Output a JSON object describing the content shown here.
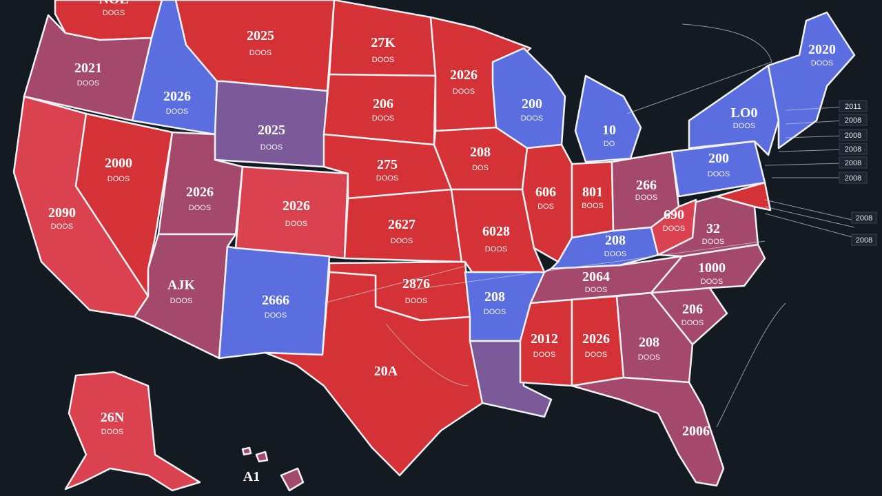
{
  "colors": {
    "background": "#141a22",
    "red": "#d43236",
    "red_light": "#d9424e",
    "purple_red": "#a4486c",
    "purple": "#7c5a9a",
    "blue": "#5a6ee0",
    "border": "#f2f2f5"
  },
  "labels": {
    "wa": {
      "num": "NOE",
      "sub": "DOGS"
    },
    "or": {
      "num": "2021",
      "sub": "DOOS"
    },
    "id": {
      "num": "2026",
      "sub": "DOOS"
    },
    "mt": {
      "num": "2025",
      "sub": "DOOS"
    },
    "nd": {
      "num": "27K",
      "sub": "DOOS"
    },
    "mn": {
      "num": "2026",
      "sub": "DOOS"
    },
    "wy": {
      "num": "2025",
      "sub": "DOOS"
    },
    "sd": {
      "num": "206",
      "sub": "DOOS"
    },
    "ca": {
      "num": "2090",
      "sub": "DOOS"
    },
    "nv": {
      "num": "2000",
      "sub": "DOOS"
    },
    "ut": {
      "num": "2026",
      "sub": "DOOS"
    },
    "co": {
      "num": "2026",
      "sub": "DOOS"
    },
    "ne": {
      "num": "275",
      "sub": "DOOS"
    },
    "ia": {
      "num": "208",
      "sub": "DOS"
    },
    "ks": {
      "num": "2627",
      "sub": "DOOS"
    },
    "mo": {
      "num": "6028",
      "sub": "DOOS"
    },
    "il": {
      "num": "606",
      "sub": "DOS"
    },
    "in": {
      "num": "801",
      "sub": "BOOS"
    },
    "oh": {
      "num": "266",
      "sub": "DOOS"
    },
    "wi": {
      "num": "200",
      "sub": "DOOS"
    },
    "mi": {
      "num": "10",
      "sub": "DO"
    },
    "az": {
      "num": "AJK",
      "sub": "DOOS"
    },
    "nm": {
      "num": "2666",
      "sub": "DOOS"
    },
    "ok": {
      "num": "2876",
      "sub": "DOOS"
    },
    "tx": {
      "num": "20A",
      "sub": ""
    },
    "ar": {
      "num": "208",
      "sub": "DOOS"
    },
    "ms": {
      "num": "2012",
      "sub": "DOOS"
    },
    "al": {
      "num": "2026",
      "sub": "DOOS"
    },
    "ga": {
      "num": "208",
      "sub": "DOOS"
    },
    "sc": {
      "num": "206",
      "sub": "DOOS"
    },
    "nc": {
      "num": "1000",
      "sub": "DOOS"
    },
    "tn": {
      "num": "2064",
      "sub": "DOOS"
    },
    "ky": {
      "num": "208",
      "sub": "DOOS"
    },
    "va": {
      "num": "32",
      "sub": "DOOS"
    },
    "wv": {
      "num": "690",
      "sub": "DOOS"
    },
    "pa": {
      "num": "200",
      "sub": "DOOS"
    },
    "ny": {
      "num": "LO0",
      "sub": "DOOS"
    },
    "me": {
      "num": "2020",
      "sub": "DOOS"
    },
    "fl": {
      "num": "2006",
      "sub": ""
    },
    "ak": {
      "num": "26N",
      "sub": "DOOS"
    },
    "hi": {
      "num": "A1",
      "sub": ""
    }
  },
  "callouts": [
    "2011",
    "2008",
    "2008",
    "2008",
    "2008",
    "2008",
    "2008",
    "2008"
  ]
}
